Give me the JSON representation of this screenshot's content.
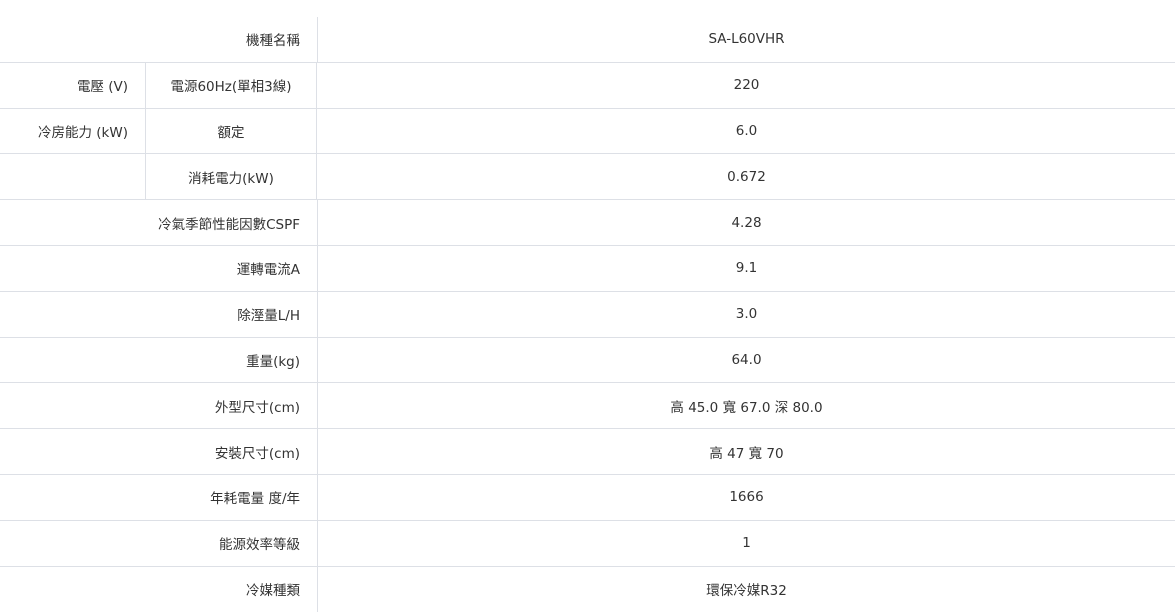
{
  "spec_table": {
    "rows": [
      {
        "label": "機種名稱",
        "value": "SA-L60VHR"
      },
      {
        "group": "電壓 (V)",
        "label": "電源60Hz(單相3線)",
        "value": "220"
      },
      {
        "group": "冷房能力 (kW)",
        "label": "額定",
        "value": "6.0"
      },
      {
        "group": "",
        "label": "消耗電力(kW)",
        "value": "0.672"
      },
      {
        "label": "冷氣季節性能因數CSPF",
        "value": "4.28"
      },
      {
        "label": "運轉電流A",
        "value": "9.1"
      },
      {
        "label": "除溼量L/H",
        "value": "3.0"
      },
      {
        "label": "重量(kg)",
        "value": "64.0"
      },
      {
        "label": "外型尺寸(cm)",
        "value": "高 45.0 寬 67.0 深 80.0"
      },
      {
        "label": "安裝尺寸(cm)",
        "value": "高 47 寬 70"
      },
      {
        "label": "年耗電量 度/年",
        "value": "1666"
      },
      {
        "label": "能源效率等級",
        "value": "1"
      },
      {
        "label": "冷媒種類",
        "value": "環保冷媒R32"
      }
    ]
  }
}
